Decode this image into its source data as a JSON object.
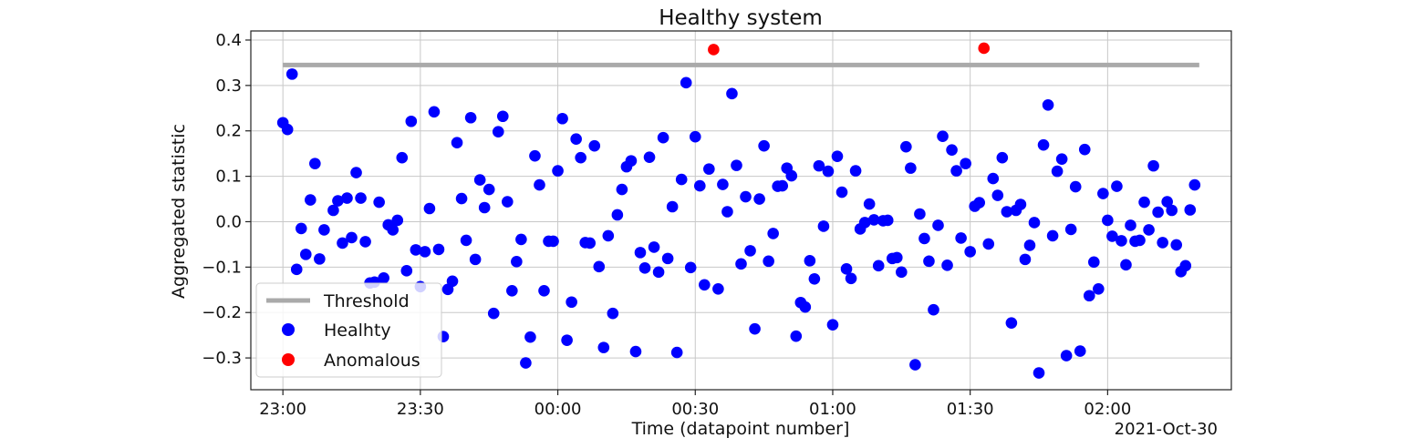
{
  "chart_data": {
    "type": "scatter",
    "title": "Healthy system",
    "xlabel": "Time (datapoint number]",
    "ylabel": "Aggregated statistic",
    "x_offset_label": "2021-Oct-30",
    "x_unit": "minutes",
    "xlim": [
      "22:53",
      "02:27"
    ],
    "ylim": [
      -0.37,
      0.42
    ],
    "x_ticks": [
      {
        "label": "23:00",
        "value": "23:00"
      },
      {
        "label": "23:30",
        "value": "23:30"
      },
      {
        "label": "00:00",
        "value": "00:00"
      },
      {
        "label": "00:30",
        "value": "00:30"
      },
      {
        "label": "01:00",
        "value": "01:00"
      },
      {
        "label": "01:30",
        "value": "01:30"
      },
      {
        "label": "02:00",
        "value": "02:00"
      }
    ],
    "y_ticks": [
      {
        "label": "0.4",
        "value": 0.4
      },
      {
        "label": "0.3",
        "value": 0.3
      },
      {
        "label": "0.2",
        "value": 0.2
      },
      {
        "label": "0.1",
        "value": 0.1
      },
      {
        "label": "0.0",
        "value": 0.0
      },
      {
        "label": "−0.1",
        "value": -0.1
      },
      {
        "label": "−0.2",
        "value": -0.2
      },
      {
        "label": "−0.3",
        "value": -0.3
      }
    ],
    "grid": true,
    "legend_position": "bottom-left",
    "threshold": {
      "name": "Threshold",
      "value": 0.345,
      "x": [
        "23:00",
        "02:20"
      ],
      "color": "#aaaaaa"
    },
    "series": [
      {
        "name": "Healhty",
        "color": "#0000ff",
        "points": [
          [
            "23:00",
            0.218
          ],
          [
            "23:01",
            0.203
          ],
          [
            "23:02",
            0.325
          ],
          [
            "23:03",
            -0.105
          ],
          [
            "23:04",
            -0.015
          ],
          [
            "23:05",
            -0.072
          ],
          [
            "23:06",
            0.048
          ],
          [
            "23:07",
            0.128
          ],
          [
            "23:08",
            -0.082
          ],
          [
            "23:09",
            -0.018
          ],
          [
            "23:11",
            0.025
          ],
          [
            "23:12",
            0.046
          ],
          [
            "23:13",
            -0.047
          ],
          [
            "23:14",
            0.052
          ],
          [
            "23:15",
            -0.035
          ],
          [
            "23:16",
            0.108
          ],
          [
            "23:17",
            0.052
          ],
          [
            "23:18",
            -0.044
          ],
          [
            "23:19",
            -0.135
          ],
          [
            "23:20",
            -0.133
          ],
          [
            "23:21",
            0.043
          ],
          [
            "23:22",
            -0.124
          ],
          [
            "23:23",
            -0.007
          ],
          [
            "23:24",
            -0.018
          ],
          [
            "23:25",
            0.003
          ],
          [
            "23:26",
            0.141
          ],
          [
            "23:27",
            -0.108
          ],
          [
            "23:28",
            0.221
          ],
          [
            "23:29",
            -0.062
          ],
          [
            "23:30",
            -0.143
          ],
          [
            "23:31",
            -0.066
          ],
          [
            "23:32",
            0.029
          ],
          [
            "23:33",
            0.242
          ],
          [
            "23:34",
            -0.061
          ],
          [
            "23:35",
            -0.253
          ],
          [
            "23:36",
            -0.149
          ],
          [
            "23:37",
            -0.131
          ],
          [
            "23:38",
            0.174
          ],
          [
            "23:39",
            0.051
          ],
          [
            "23:40",
            -0.041
          ],
          [
            "23:41",
            0.229
          ],
          [
            "23:42",
            -0.083
          ],
          [
            "23:43",
            0.092
          ],
          [
            "23:44",
            0.031
          ],
          [
            "23:45",
            0.071
          ],
          [
            "23:46",
            -0.202
          ],
          [
            "23:47",
            0.198
          ],
          [
            "23:48",
            0.232
          ],
          [
            "23:49",
            0.044
          ],
          [
            "23:50",
            -0.152
          ],
          [
            "23:51",
            -0.088
          ],
          [
            "23:52",
            -0.039
          ],
          [
            "23:53",
            -0.311
          ],
          [
            "23:54",
            -0.254
          ],
          [
            "23:55",
            0.145
          ],
          [
            "23:56",
            0.081
          ],
          [
            "23:57",
            -0.152
          ],
          [
            "23:58",
            -0.043
          ],
          [
            "23:59",
            -0.043
          ],
          [
            "00:00",
            0.112
          ],
          [
            "00:01",
            0.227
          ],
          [
            "00:02",
            -0.261
          ],
          [
            "00:03",
            -0.177
          ],
          [
            "00:04",
            0.182
          ],
          [
            "00:05",
            0.141
          ],
          [
            "00:06",
            -0.046
          ],
          [
            "00:07",
            -0.047
          ],
          [
            "00:08",
            0.167
          ],
          [
            "00:09",
            -0.099
          ],
          [
            "00:10",
            -0.277
          ],
          [
            "00:11",
            -0.031
          ],
          [
            "00:12",
            -0.202
          ],
          [
            "00:13",
            0.015
          ],
          [
            "00:14",
            0.071
          ],
          [
            "00:15",
            0.121
          ],
          [
            "00:16",
            0.134
          ],
          [
            "00:17",
            -0.286
          ],
          [
            "00:18",
            -0.068
          ],
          [
            "00:19",
            -0.102
          ],
          [
            "00:20",
            0.142
          ],
          [
            "00:21",
            -0.056
          ],
          [
            "00:22",
            -0.111
          ],
          [
            "00:23",
            0.185
          ],
          [
            "00:24",
            -0.081
          ],
          [
            "00:25",
            0.033
          ],
          [
            "00:26",
            -0.288
          ],
          [
            "00:27",
            0.093
          ],
          [
            "00:28",
            0.306
          ],
          [
            "00:29",
            -0.101
          ],
          [
            "00:30",
            0.187
          ],
          [
            "00:31",
            0.079
          ],
          [
            "00:32",
            -0.139
          ],
          [
            "00:33",
            0.116
          ],
          [
            "00:35",
            -0.148
          ],
          [
            "00:36",
            0.082
          ],
          [
            "00:37",
            0.022
          ],
          [
            "00:38",
            0.282
          ],
          [
            "00:39",
            0.124
          ],
          [
            "00:40",
            -0.093
          ],
          [
            "00:41",
            0.055
          ],
          [
            "00:42",
            -0.064
          ],
          [
            "00:43",
            -0.236
          ],
          [
            "00:44",
            0.05
          ],
          [
            "00:45",
            0.167
          ],
          [
            "00:46",
            -0.087
          ],
          [
            "00:47",
            -0.026
          ],
          [
            "00:48",
            0.078
          ],
          [
            "00:49",
            0.079
          ],
          [
            "00:50",
            0.118
          ],
          [
            "00:51",
            0.101
          ],
          [
            "00:52",
            -0.252
          ],
          [
            "00:53",
            -0.178
          ],
          [
            "00:54",
            -0.188
          ],
          [
            "00:55",
            -0.086
          ],
          [
            "00:56",
            -0.126
          ],
          [
            "00:57",
            0.123
          ],
          [
            "00:58",
            -0.01
          ],
          [
            "00:59",
            0.111
          ],
          [
            "01:00",
            -0.227
          ],
          [
            "01:01",
            0.144
          ],
          [
            "01:02",
            0.065
          ],
          [
            "01:03",
            -0.104
          ],
          [
            "01:04",
            -0.125
          ],
          [
            "01:05",
            0.112
          ],
          [
            "01:06",
            -0.016
          ],
          [
            "01:07",
            -0.002
          ],
          [
            "01:08",
            0.039
          ],
          [
            "01:09",
            0.004
          ],
          [
            "01:10",
            -0.097
          ],
          [
            "01:11",
            0.002
          ],
          [
            "01:12",
            0.003
          ],
          [
            "01:13",
            -0.081
          ],
          [
            "01:14",
            -0.079
          ],
          [
            "01:15",
            -0.111
          ],
          [
            "01:16",
            0.165
          ],
          [
            "01:17",
            0.118
          ],
          [
            "01:18",
            -0.315
          ],
          [
            "01:19",
            0.017
          ],
          [
            "01:20",
            -0.037
          ],
          [
            "01:21",
            -0.087
          ],
          [
            "01:22",
            -0.194
          ],
          [
            "01:23",
            -0.008
          ],
          [
            "01:24",
            0.188
          ],
          [
            "01:25",
            -0.096
          ],
          [
            "01:26",
            0.158
          ],
          [
            "01:27",
            0.112
          ],
          [
            "01:28",
            -0.036
          ],
          [
            "01:29",
            0.128
          ],
          [
            "01:30",
            -0.066
          ],
          [
            "01:31",
            0.034
          ],
          [
            "01:32",
            0.042
          ],
          [
            "01:34",
            -0.049
          ],
          [
            "01:35",
            0.095
          ],
          [
            "01:36",
            0.058
          ],
          [
            "01:37",
            0.141
          ],
          [
            "01:38",
            0.022
          ],
          [
            "01:39",
            -0.223
          ],
          [
            "01:40",
            0.025
          ],
          [
            "01:41",
            0.038
          ],
          [
            "01:42",
            -0.083
          ],
          [
            "01:43",
            -0.052
          ],
          [
            "01:44",
            -0.002
          ],
          [
            "01:45",
            -0.333
          ],
          [
            "01:46",
            0.169
          ],
          [
            "01:47",
            0.257
          ],
          [
            "01:48",
            -0.031
          ],
          [
            "01:49",
            0.111
          ],
          [
            "01:50",
            0.138
          ],
          [
            "01:51",
            -0.295
          ],
          [
            "01:52",
            -0.017
          ],
          [
            "01:53",
            0.077
          ],
          [
            "01:54",
            -0.285
          ],
          [
            "01:55",
            0.159
          ],
          [
            "01:56",
            -0.163
          ],
          [
            "01:57",
            -0.089
          ],
          [
            "01:58",
            -0.148
          ],
          [
            "01:59",
            0.062
          ],
          [
            "02:00",
            0.003
          ],
          [
            "02:01",
            -0.032
          ],
          [
            "02:02",
            0.078
          ],
          [
            "02:03",
            -0.042
          ],
          [
            "02:04",
            -0.095
          ],
          [
            "02:05",
            -0.008
          ],
          [
            "02:06",
            -0.043
          ],
          [
            "02:07",
            -0.041
          ],
          [
            "02:08",
            0.043
          ],
          [
            "02:09",
            -0.018
          ],
          [
            "02:10",
            0.123
          ],
          [
            "02:11",
            0.021
          ],
          [
            "02:12",
            -0.046
          ],
          [
            "02:13",
            0.044
          ],
          [
            "02:14",
            0.025
          ],
          [
            "02:15",
            -0.051
          ],
          [
            "02:16",
            -0.11
          ],
          [
            "02:17",
            -0.097
          ],
          [
            "02:18",
            0.026
          ],
          [
            "02:19",
            0.081
          ]
        ]
      },
      {
        "name": "Anomalous",
        "color": "#ff0000",
        "points": [
          [
            "00:34",
            0.379
          ],
          [
            "01:33",
            0.382
          ]
        ]
      }
    ]
  }
}
